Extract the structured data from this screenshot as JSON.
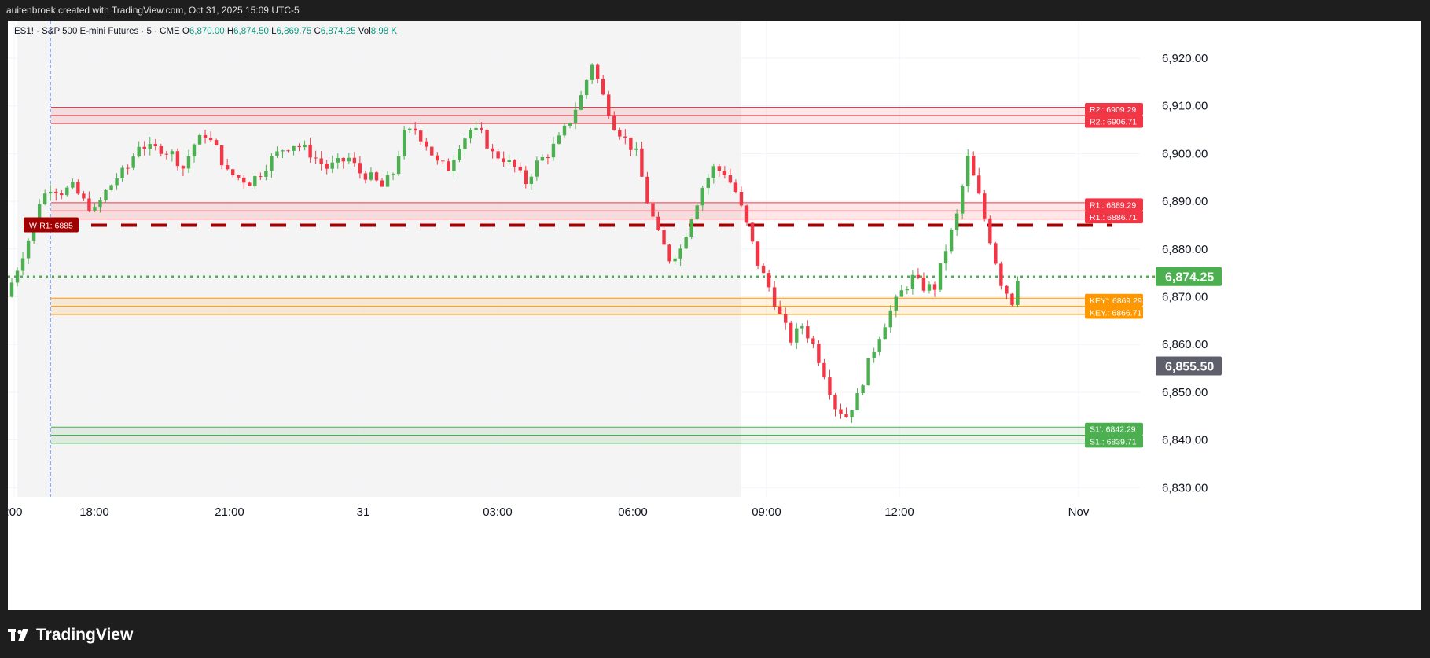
{
  "header": {
    "attribution": "auitenbroek created with TradingView.com, Oct 31, 2025 15:09 UTC-5"
  },
  "symbol_info": {
    "title": "ES1! · S&P 500 E-mini Futures · 5 · CME",
    "open_label": "O",
    "open": "6,870.00",
    "high_label": "H",
    "high": "6,874.50",
    "low_label": "L",
    "low": "6,869.75",
    "close_label": "C",
    "close": "6,874.25",
    "vol_label": "Vol",
    "vol": "8.98 K"
  },
  "footer": {
    "brand": "TradingView"
  },
  "colors": {
    "up": "#4caf50",
    "down": "#f23645",
    "resistance": "#f23645",
    "key": "#ff9800",
    "support": "#4caf50",
    "weekly_r1": "#a00000",
    "session_bg": "#f4f4f4"
  },
  "chart_data": {
    "type": "candlestick",
    "symbol": "ES1!",
    "timeframe": "5",
    "ylim": [
      6826,
      6926
    ],
    "y_ticks": [
      6830,
      6840,
      6850,
      6860,
      6870,
      6880,
      6890,
      6900,
      6910,
      6920
    ],
    "y_tick_labels": [
      "6,830.00",
      "6,840.00",
      "6,850.00",
      "6,860.00",
      "6,870.00",
      "6,880.00",
      "6,890.00",
      "6,900.00",
      "6,910.00",
      "6,920.00"
    ],
    "x_tick_labels": [
      ":00",
      "18:00",
      "21:00",
      "31",
      "03:00",
      "06:00",
      "09:00",
      "12:00",
      "Nov"
    ],
    "last_price": {
      "value": 6874.25,
      "label": "6,874.25"
    },
    "price_marker": {
      "value": 6855.5,
      "label": "6,855.50"
    },
    "levels": [
      {
        "label": "R2': 6909.29",
        "value": 6909.29,
        "kind": "resistance"
      },
      {
        "label": "R2.: 6906.71",
        "value": 6906.71,
        "kind": "resistance"
      },
      {
        "label": "R1': 6889.29",
        "value": 6889.29,
        "kind": "resistance"
      },
      {
        "label": "R1.: 6886.71",
        "value": 6886.71,
        "kind": "resistance"
      },
      {
        "label": "KEY': 6869.29",
        "value": 6869.29,
        "kind": "key"
      },
      {
        "label": "KEY.: 6866.71",
        "value": 6866.71,
        "kind": "key"
      },
      {
        "label": "S1': 6842.29",
        "value": 6842.29,
        "kind": "support"
      },
      {
        "label": "S1.: 6839.71",
        "value": 6839.71,
        "kind": "support"
      }
    ],
    "weekly_level": {
      "label": "W-R1: 6885",
      "value": 6885
    },
    "price_path": [
      [
        0,
        6870
      ],
      [
        2,
        6876
      ],
      [
        4,
        6882
      ],
      [
        6,
        6890
      ],
      [
        8,
        6893
      ],
      [
        10,
        6892
      ],
      [
        12,
        6893
      ],
      [
        14,
        6890
      ],
      [
        16,
        6888
      ],
      [
        18,
        6892
      ],
      [
        20,
        6895
      ],
      [
        22,
        6897
      ],
      [
        24,
        6902
      ],
      [
        26,
        6901
      ],
      [
        28,
        6901
      ],
      [
        30,
        6900
      ],
      [
        32,
        6897
      ],
      [
        34,
        6902
      ],
      [
        36,
        6904
      ],
      [
        38,
        6901
      ],
      [
        40,
        6896
      ],
      [
        42,
        6895
      ],
      [
        44,
        6894
      ],
      [
        46,
        6896
      ],
      [
        48,
        6899
      ],
      [
        50,
        6901
      ],
      [
        52,
        6902
      ],
      [
        54,
        6901
      ],
      [
        56,
        6899
      ],
      [
        58,
        6897
      ],
      [
        60,
        6898
      ],
      [
        62,
        6899
      ],
      [
        64,
        6896
      ],
      [
        66,
        6895
      ],
      [
        68,
        6893
      ],
      [
        70,
        6896
      ],
      [
        72,
        6904
      ],
      [
        74,
        6905
      ],
      [
        76,
        6902
      ],
      [
        78,
        6898
      ],
      [
        80,
        6897
      ],
      [
        82,
        6902
      ],
      [
        84,
        6905
      ],
      [
        86,
        6904
      ],
      [
        88,
        6900
      ],
      [
        90,
        6899
      ],
      [
        92,
        6897
      ],
      [
        94,
        6894
      ],
      [
        96,
        6898
      ],
      [
        98,
        6900
      ],
      [
        100,
        6903
      ],
      [
        102,
        6907
      ],
      [
        104,
        6912
      ],
      [
        106,
        6919
      ],
      [
        108,
        6912
      ],
      [
        110,
        6906
      ],
      [
        112,
        6903
      ],
      [
        114,
        6900
      ],
      [
        116,
        6890
      ],
      [
        118,
        6883
      ],
      [
        120,
        6878
      ],
      [
        122,
        6880
      ],
      [
        124,
        6887
      ],
      [
        126,
        6893
      ],
      [
        128,
        6897
      ],
      [
        130,
        6896
      ],
      [
        132,
        6892
      ],
      [
        134,
        6885
      ],
      [
        136,
        6877
      ],
      [
        138,
        6872
      ],
      [
        140,
        6866
      ],
      [
        142,
        6861
      ],
      [
        144,
        6864
      ],
      [
        146,
        6860
      ],
      [
        148,
        6854
      ],
      [
        150,
        6847
      ],
      [
        152,
        6845
      ],
      [
        154,
        6849
      ],
      [
        156,
        6856
      ],
      [
        158,
        6862
      ],
      [
        160,
        6867
      ],
      [
        162,
        6871
      ],
      [
        164,
        6874
      ],
      [
        166,
        6872
      ],
      [
        168,
        6872
      ],
      [
        170,
        6880
      ],
      [
        172,
        6887
      ],
      [
        174,
        6899
      ],
      [
        176,
        6891
      ],
      [
        178,
        6882
      ],
      [
        180,
        6873
      ],
      [
        182,
        6869
      ],
      [
        183,
        6874.25
      ]
    ]
  }
}
